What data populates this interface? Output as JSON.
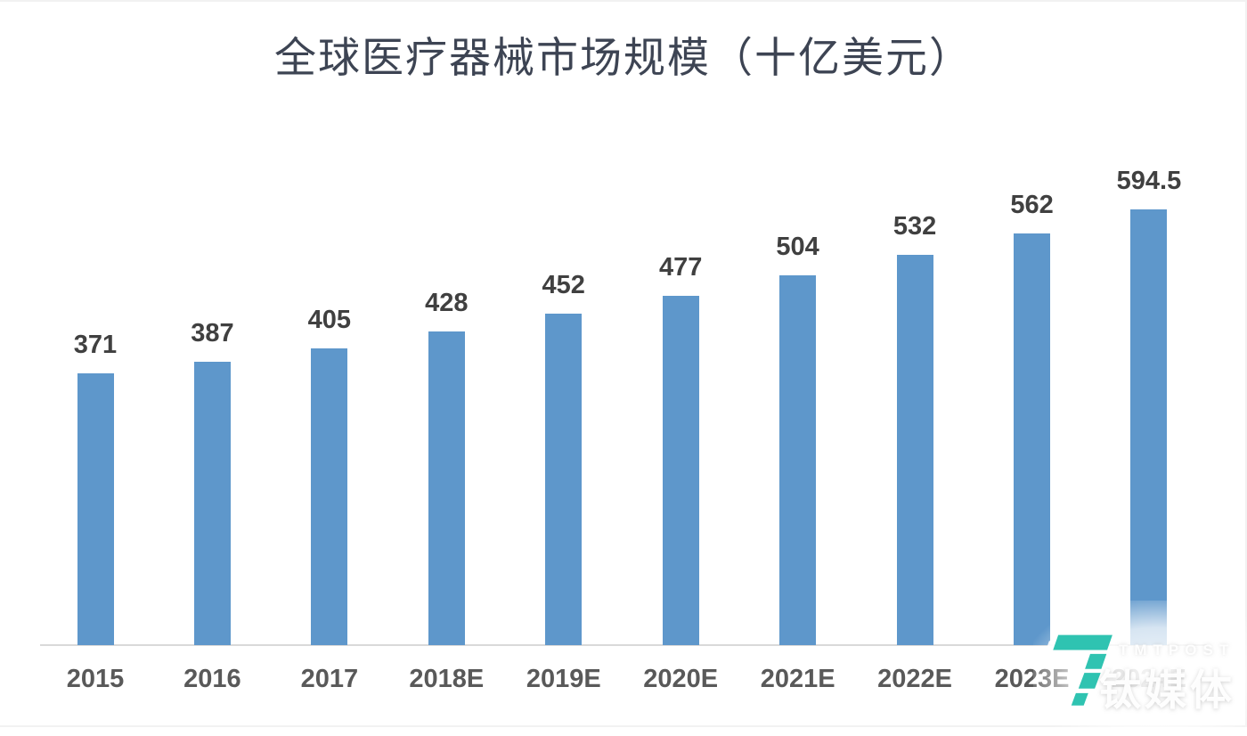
{
  "title": "全球医疗器械市场规模（十亿美元）",
  "chart_data": {
    "type": "bar",
    "title": "全球医疗器械市场规模（十亿美元）",
    "categories": [
      "2015",
      "2016",
      "2017",
      "2018E",
      "2019E",
      "2020E",
      "2021E",
      "2022E",
      "2023E",
      "2024E"
    ],
    "values": [
      371,
      387,
      405,
      428,
      452,
      477,
      504,
      532,
      562,
      594.5
    ],
    "value_labels": [
      "371",
      "387",
      "405",
      "428",
      "452",
      "477",
      "504",
      "532",
      "562",
      "594.5"
    ],
    "xlabel": "",
    "ylabel": "",
    "ylim": [
      0,
      650
    ],
    "grid": false,
    "legend": false,
    "bar_color": "#5e97cb",
    "axis_line_color": "#d9d9d9",
    "value_label_color": "#404040",
    "tick_label_color": "#595959"
  },
  "watermark": {
    "brand_en": "TMTPOST",
    "brand_cn": "钛媒体",
    "logo_icon": "tmtpost-t-question-mark-logo",
    "logo_color": "#2fc3b1"
  }
}
